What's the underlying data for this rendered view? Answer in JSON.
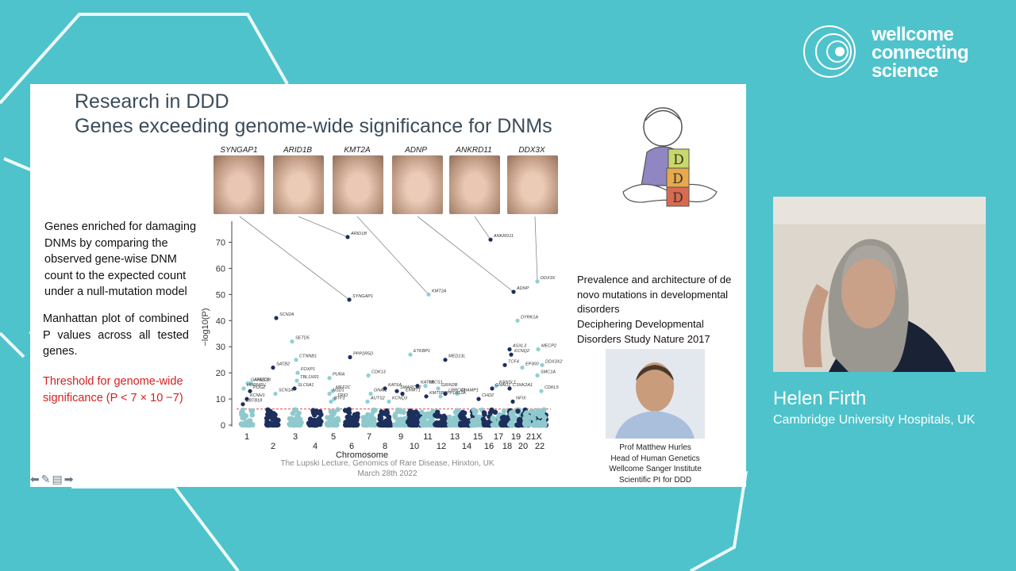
{
  "branding": {
    "logo_lines": [
      "wellcome",
      "connecting",
      "science"
    ]
  },
  "speaker": {
    "name": "Helen Firth",
    "affiliation": "Cambridge University Hospitals, UK"
  },
  "slide": {
    "title_line1": "Research in DDD",
    "title_line2": "Genes exceeding genome-wide significance for DNMs",
    "left_text_1": "Genes enriched for damaging DNMs by comparing the observed gene-wise DNM count to the expected count under a null-mutation model",
    "left_text_2": "Manhattan plot of combined P values across all tested genes.",
    "left_text_3": "Threshold for genome-wide significance (P < 7 × 10 −7)",
    "face_labels": [
      "SYNGAP1",
      "ARID1B",
      "KMT2A",
      "ADNP",
      "ANKRD11",
      "DDX3X"
    ],
    "ref_title": "Prevalence and architecture of de novo mutations in developmental disorders",
    "ref_source": "Deciphering Developmental Disorders Study Nature 2017",
    "caption_lines": [
      "Prof Matthew Hurles",
      "Head of Human Genetics",
      "Wellcome Sanger Institute",
      "Scientific PI for DDD"
    ],
    "footer_lines": [
      "The Lupski Lecture, Genomics of Rare Disease, Hinxton, UK",
      "March 28th 2022"
    ],
    "blocks_letters": [
      "D",
      "D",
      "D"
    ]
  },
  "chart_data": {
    "type": "scatter",
    "xlabel": "Chromosome",
    "ylabel": "−log10(P)",
    "ylim": [
      0,
      75
    ],
    "yticks": [
      0,
      10,
      20,
      30,
      40,
      50,
      60,
      70
    ],
    "xticks": [
      "1",
      "2",
      "3",
      "4",
      "5",
      "6",
      "7",
      "8",
      "9",
      "10",
      "11",
      "12",
      "13",
      "14",
      "15",
      "16",
      "17",
      "18",
      "19",
      "20",
      "21",
      "22",
      "X"
    ],
    "threshold_value": 6.15,
    "points": [
      {
        "label": "ARID1B",
        "chrom": "6",
        "y": 72,
        "kind": "dark"
      },
      {
        "label": "ANKRD11",
        "chrom": "16",
        "y": 71,
        "kind": "dark"
      },
      {
        "label": "DDX3X",
        "chrom": "X",
        "y": 55,
        "kind": "light"
      },
      {
        "label": "ADNP",
        "chrom": "20",
        "y": 51,
        "kind": "dark"
      },
      {
        "label": "KMT2A",
        "chrom": "11",
        "y": 50,
        "kind": "light"
      },
      {
        "label": "SYNGAP1",
        "chrom": "6",
        "y": 48,
        "kind": "dark"
      },
      {
        "label": "SCN2A",
        "chrom": "2",
        "y": 41,
        "kind": "dark"
      },
      {
        "label": "DYRK1A",
        "chrom": "21",
        "y": 40,
        "kind": "light"
      },
      {
        "label": "SETD5",
        "chrom": "3",
        "y": 32,
        "kind": "light"
      },
      {
        "label": "ASXL3",
        "chrom": "18",
        "y": 29,
        "kind": "dark"
      },
      {
        "label": "MECP2",
        "chrom": "X",
        "y": 29,
        "kind": "light"
      },
      {
        "label": "ETKBP1",
        "chrom": "10",
        "y": 27,
        "kind": "light"
      },
      {
        "label": "KCNQ2",
        "chrom": "20",
        "y": 27,
        "kind": "dark"
      },
      {
        "label": "PPP2R5D",
        "chrom": "6",
        "y": 26,
        "kind": "dark"
      },
      {
        "label": "MED13L",
        "chrom": "12",
        "y": 25,
        "kind": "dark"
      },
      {
        "label": "CTNNB1",
        "chrom": "3",
        "y": 25,
        "kind": "light"
      },
      {
        "label": "TCF4",
        "chrom": "18",
        "y": 23,
        "kind": "dark"
      },
      {
        "label": "DDX3X2",
        "chrom": "X",
        "y": 23,
        "kind": "light"
      },
      {
        "label": "SATB2",
        "chrom": "2",
        "y": 22,
        "kind": "dark"
      },
      {
        "label": "EP300",
        "chrom": "22",
        "y": 22,
        "kind": "light"
      },
      {
        "label": "FOXP1",
        "chrom": "3",
        "y": 20,
        "kind": "light"
      },
      {
        "label": "CDK13",
        "chrom": "7",
        "y": 19,
        "kind": "light"
      },
      {
        "label": "PURA",
        "chrom": "5",
        "y": 18,
        "kind": "light"
      },
      {
        "label": "TBL1XR1",
        "chrom": "3",
        "y": 17,
        "kind": "light"
      },
      {
        "label": "SMC1A",
        "chrom": "X",
        "y": 19,
        "kind": "light"
      },
      {
        "label": "AHDC1",
        "chrom": "1",
        "y": 16,
        "kind": "light"
      },
      {
        "label": "GATAD2B",
        "chrom": "1",
        "y": 16,
        "kind": "light"
      },
      {
        "label": "PACS1",
        "chrom": "11",
        "y": 15,
        "kind": "light"
      },
      {
        "label": "KAT6B",
        "chrom": "10",
        "y": 15,
        "kind": "dark"
      },
      {
        "label": "KAT6A",
        "chrom": "8",
        "y": 14,
        "kind": "dark"
      },
      {
        "label": "GRIN2B",
        "chrom": "12",
        "y": 14,
        "kind": "light"
      },
      {
        "label": "CHAMP1",
        "chrom": "13",
        "y": 12,
        "kind": "light"
      },
      {
        "label": "MEF2C",
        "chrom": "5",
        "y": 13,
        "kind": "light"
      },
      {
        "label": "NSD1",
        "chrom": "5",
        "y": 12,
        "kind": "light"
      },
      {
        "label": "GNAI1",
        "chrom": "7",
        "y": 12,
        "kind": "light"
      },
      {
        "label": "AUTS2",
        "chrom": "7",
        "y": 9,
        "kind": "light"
      },
      {
        "label": "KCNQ3",
        "chrom": "8",
        "y": 9,
        "kind": "light"
      },
      {
        "label": "TRIO",
        "chrom": "5",
        "y": 10,
        "kind": "light"
      },
      {
        "label": "BTF3",
        "chrom": "5",
        "y": 9,
        "kind": "light"
      },
      {
        "label": "POGZ",
        "chrom": "1",
        "y": 13,
        "kind": "dark"
      },
      {
        "label": "KCNH1",
        "chrom": "1",
        "y": 10,
        "kind": "dark"
      },
      {
        "label": "HNRNPU",
        "chrom": "1",
        "y": 14,
        "kind": "light"
      },
      {
        "label": "SCN1A",
        "chrom": "2",
        "y": 12,
        "kind": "light"
      },
      {
        "label": "SLC6A1",
        "chrom": "3",
        "y": 14,
        "kind": "dark"
      },
      {
        "label": "SMARCA2",
        "chrom": "9",
        "y": 13,
        "kind": "dark"
      },
      {
        "label": "EHMT1",
        "chrom": "9",
        "y": 12,
        "kind": "dark"
      },
      {
        "label": "KMT5B",
        "chrom": "11",
        "y": 11,
        "kind": "dark"
      },
      {
        "label": "LRRC43",
        "chrom": "12",
        "y": 12,
        "kind": "dark"
      },
      {
        "label": "CHD2",
        "chrom": "15",
        "y": 10,
        "kind": "dark"
      },
      {
        "label": "KANSL1",
        "chrom": "17",
        "y": 15,
        "kind": "light"
      },
      {
        "label": "GNAO1",
        "chrom": "16",
        "y": 14,
        "kind": "dark"
      },
      {
        "label": "CSNK2A1",
        "chrom": "20",
        "y": 14,
        "kind": "dark"
      },
      {
        "label": "NFIX",
        "chrom": "19",
        "y": 9,
        "kind": "dark"
      },
      {
        "label": "CDKL5",
        "chrom": "X",
        "y": 13,
        "kind": "light"
      },
      {
        "label": "PPP1R12A",
        "chrom": "12",
        "y": 11,
        "kind": "light"
      },
      {
        "label": "ZBTB18",
        "chrom": "1",
        "y": 8,
        "kind": "dark"
      }
    ]
  }
}
